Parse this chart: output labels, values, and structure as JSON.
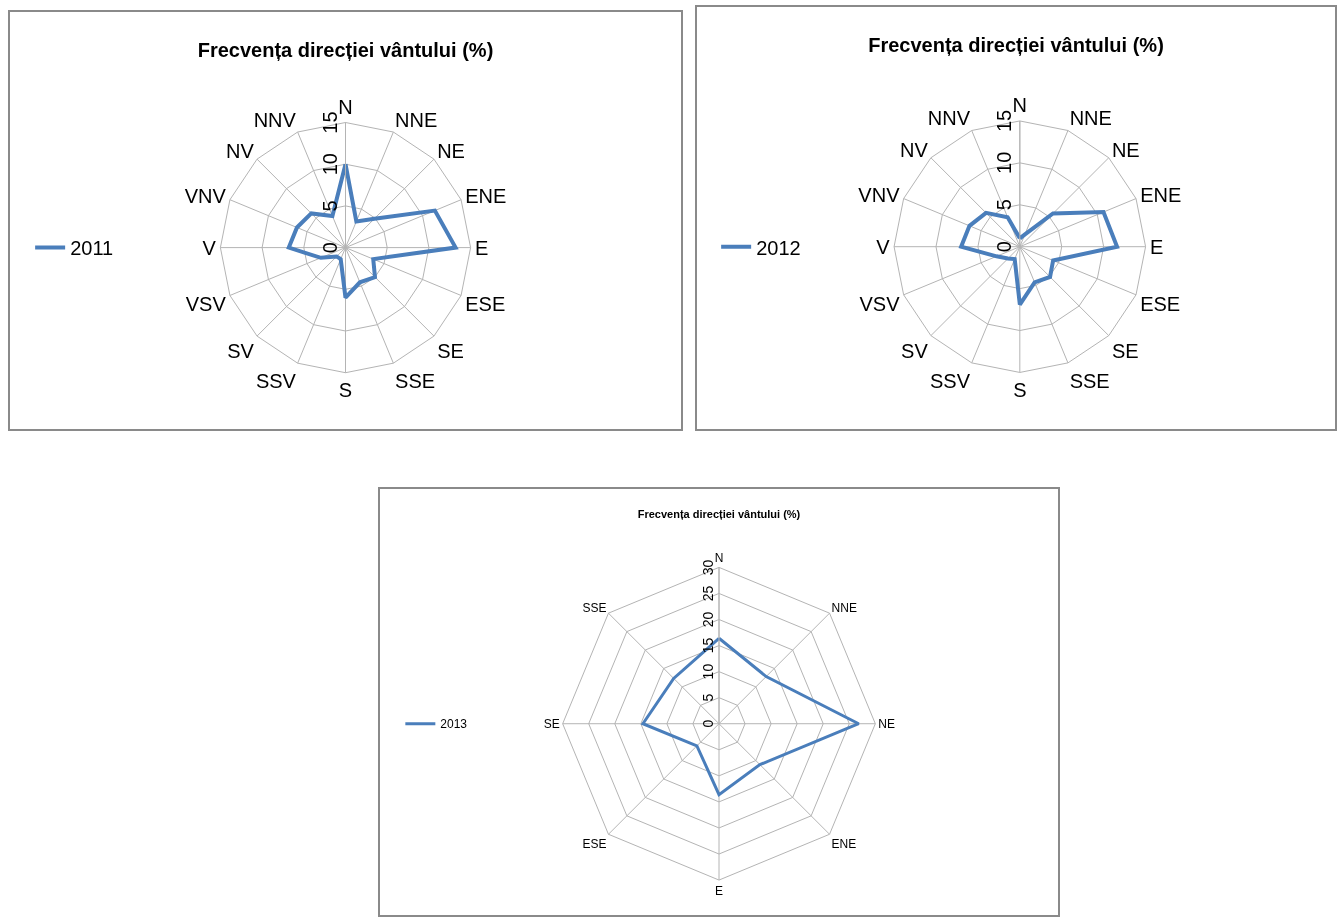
{
  "chart_data": [
    {
      "type": "radar",
      "title": "Frecvența direcției vântului (%)",
      "categories": [
        "N",
        "NNE",
        "NE",
        "ENE",
        "E",
        "ESE",
        "SE",
        "SSE",
        "S",
        "SSV",
        "SV",
        "VSV",
        "V",
        "VNV",
        "NV",
        "NNV"
      ],
      "series": [
        {
          "name": "2011",
          "color": "#4a7ebb",
          "values": [
            10,
            3.4,
            4.9,
            11.6,
            13.2,
            3.6,
            5,
            4.5,
            6,
            1.5,
            1.5,
            3.2,
            6.8,
            6.3,
            5.8,
            4.1
          ]
        }
      ],
      "ylim": [
        0,
        15
      ],
      "yticks": [
        0,
        5,
        10,
        15
      ],
      "grid": true,
      "legend": "left",
      "marker": "none"
    },
    {
      "type": "radar",
      "title": "Frecvența direcției vântului (%)",
      "categories": [
        "N",
        "NNE",
        "NE",
        "ENE",
        "E",
        "ESE",
        "SE",
        "SSE",
        "S",
        "SSV",
        "SV",
        "VSV",
        "V",
        "VNV",
        "NV",
        "NNV"
      ],
      "series": [
        {
          "name": "2012",
          "color": "#4a7ebb",
          "values": [
            1,
            1.6,
            5.6,
            10.8,
            11.6,
            4.3,
            5.1,
            4.6,
            6.9,
            1.6,
            2,
            3,
            7,
            6.5,
            5.7,
            3.8
          ]
        }
      ],
      "ylim": [
        0,
        15
      ],
      "yticks": [
        0,
        5,
        10,
        15
      ],
      "grid": true,
      "legend": "left",
      "marker": "none"
    },
    {
      "type": "radar",
      "title": "Frecvența direcției vântului (%)",
      "categories": [
        "N",
        "NNE",
        "NE",
        "ENE",
        "E",
        "ESE",
        "SE",
        "SSE"
      ],
      "series": [
        {
          "name": "2013",
          "color": "#4a7ebb",
          "values": [
            16.4,
            12.8,
            26.8,
            11.1,
            13.6,
            6,
            14.6,
            12.3
          ]
        }
      ],
      "ylim": [
        0,
        30
      ],
      "yticks": [
        0,
        5,
        10,
        15,
        20,
        25,
        30
      ],
      "grid": true,
      "legend": "left",
      "marker": "none"
    }
  ]
}
